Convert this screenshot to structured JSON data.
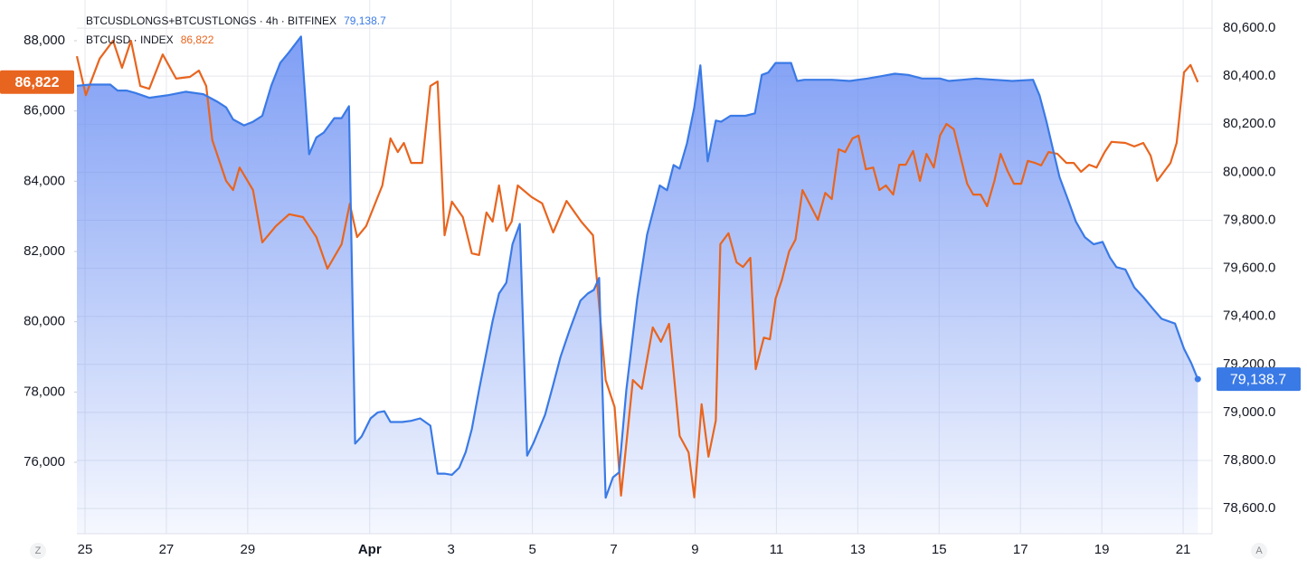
{
  "chart_data": {
    "type": "line",
    "left_button": "Z",
    "right_button": "A",
    "xlim": [
      -0.2,
      27.71
    ],
    "xticks": [
      {
        "value": 0,
        "label": "25"
      },
      {
        "value": 2,
        "label": "27"
      },
      {
        "value": 4,
        "label": "29"
      },
      {
        "value": 7,
        "label": "Apr"
      },
      {
        "value": 9,
        "label": "3"
      },
      {
        "value": 11,
        "label": "5"
      },
      {
        "value": 13,
        "label": "7"
      },
      {
        "value": 15,
        "label": "9"
      },
      {
        "value": 17,
        "label": "11"
      },
      {
        "value": 19,
        "label": "13"
      },
      {
        "value": 21,
        "label": "15"
      },
      {
        "value": 23,
        "label": "17"
      },
      {
        "value": 25,
        "label": "19"
      },
      {
        "value": 27,
        "label": "21"
      }
    ],
    "ylim": [
      73966,
      89159
    ],
    "yticks": [
      {
        "value": 76000,
        "label": "76,000"
      },
      {
        "value": 78000,
        "label": "78,000"
      },
      {
        "value": 80000,
        "label": "80,000"
      },
      {
        "value": 82000,
        "label": "82,000"
      },
      {
        "value": 84000,
        "label": "84,000"
      },
      {
        "value": 86000,
        "label": "86,000"
      },
      {
        "value": 88000,
        "label": "88,000"
      }
    ],
    "y2lim": [
      78495,
      80717
    ],
    "y2ticks": [
      {
        "value": 78600,
        "label": "78,600.0"
      },
      {
        "value": 78800,
        "label": "78,800.0"
      },
      {
        "value": 79000,
        "label": "79,000.0"
      },
      {
        "value": 79200,
        "label": "79,200.0"
      },
      {
        "value": 79400,
        "label": "79,400.0"
      },
      {
        "value": 79600,
        "label": "79,600.0"
      },
      {
        "value": 79800,
        "label": "79,800.0"
      },
      {
        "value": 80000,
        "label": "80,000.0"
      },
      {
        "value": 80200,
        "label": "80,200.0"
      },
      {
        "value": 80400,
        "label": "80,400.0"
      },
      {
        "value": 80600,
        "label": "80,600.0"
      }
    ],
    "grid": true,
    "series": [
      {
        "name": "BTCUSDLONGS+BTCUSTLONGS · 4h · BITFINEX",
        "style": "area",
        "axis": "y2",
        "color": "#3a7ae6",
        "last_value_label": "79,138.7",
        "x": [
          -0.2,
          0.13,
          0.62,
          0.8,
          1.02,
          1.24,
          1.58,
          2.02,
          2.47,
          2.91,
          3.24,
          3.47,
          3.64,
          3.91,
          4.13,
          4.36,
          4.58,
          4.8,
          5.02,
          5.31,
          5.51,
          5.69,
          5.87,
          6.13,
          6.31,
          6.49,
          6.64,
          6.8,
          7.02,
          7.2,
          7.36,
          7.51,
          7.8,
          8.02,
          8.24,
          8.49,
          8.67,
          8.84,
          9.02,
          9.2,
          9.36,
          9.51,
          9.69,
          9.87,
          10.02,
          10.18,
          10.36,
          10.51,
          10.69,
          10.87,
          11.02,
          11.31,
          11.51,
          11.69,
          11.91,
          12.18,
          12.36,
          12.51,
          12.64,
          12.8,
          12.98,
          13.13,
          13.31,
          13.58,
          13.82,
          14.13,
          14.31,
          14.47,
          14.62,
          14.8,
          14.98,
          15.13,
          15.31,
          15.51,
          15.64,
          15.87,
          16.24,
          16.47,
          16.64,
          16.8,
          16.98,
          17.36,
          17.51,
          17.69,
          18.36,
          18.8,
          19.24,
          19.58,
          19.91,
          20.24,
          20.58,
          21.02,
          21.24,
          21.58,
          21.91,
          22.36,
          22.8,
          23.31,
          23.47,
          23.64,
          23.8,
          23.96,
          24.18,
          24.36,
          24.58,
          24.8,
          25.02,
          25.2,
          25.36,
          25.58,
          25.8,
          26.02,
          26.24,
          26.47,
          26.8,
          27.02,
          27.2,
          27.36
        ],
        "values": [
          80360,
          80365,
          80365,
          80340,
          80340,
          80330,
          80310,
          80320,
          80335,
          80325,
          80295,
          80270,
          80220,
          80195,
          80210,
          80235,
          80360,
          80455,
          80500,
          80565,
          80075,
          80145,
          80165,
          80225,
          80225,
          80275,
          78870,
          78900,
          78975,
          79000,
          79005,
          78960,
          78960,
          78965,
          78975,
          78945,
          78745,
          78745,
          78740,
          78770,
          78835,
          78930,
          79095,
          79250,
          79380,
          79495,
          79540,
          79700,
          79785,
          78820,
          78870,
          78990,
          79115,
          79230,
          79340,
          79465,
          79495,
          79510,
          79560,
          78645,
          78730,
          78750,
          79095,
          79475,
          79740,
          79945,
          79925,
          80030,
          80015,
          80120,
          80270,
          80445,
          80045,
          80215,
          80210,
          80235,
          80235,
          80245,
          80405,
          80415,
          80455,
          80455,
          80380,
          80385,
          80385,
          80380,
          80390,
          80400,
          80410,
          80405,
          80390,
          80390,
          80380,
          80385,
          80390,
          80385,
          80380,
          80385,
          80320,
          80210,
          80095,
          79980,
          79880,
          79795,
          79730,
          79700,
          79710,
          79645,
          79605,
          79595,
          79520,
          79480,
          79435,
          79390,
          79370,
          79265,
          79205,
          79138.7
        ]
      },
      {
        "name": "BTCUSD · INDEX",
        "style": "line",
        "axis": "y",
        "color": "#e8651f",
        "last_value_label": "86,822",
        "x": [
          -0.2,
          0.02,
          0.36,
          0.69,
          0.91,
          1.13,
          1.36,
          1.58,
          1.91,
          2.24,
          2.58,
          2.8,
          2.98,
          3.13,
          3.47,
          3.64,
          3.8,
          4.13,
          4.36,
          4.69,
          5.02,
          5.36,
          5.69,
          5.96,
          6.31,
          6.51,
          6.69,
          6.91,
          7.31,
          7.51,
          7.69,
          7.84,
          8.02,
          8.29,
          8.49,
          8.67,
          8.84,
          9.02,
          9.29,
          9.51,
          9.69,
          9.87,
          10.02,
          10.18,
          10.36,
          10.49,
          10.64,
          10.98,
          11.24,
          11.51,
          11.84,
          12.2,
          12.49,
          12.8,
          13.02,
          13.18,
          13.47,
          13.69,
          13.96,
          14.16,
          14.36,
          14.62,
          14.84,
          14.98,
          15.16,
          15.33,
          15.51,
          15.62,
          15.82,
          16.02,
          16.18,
          16.36,
          16.49,
          16.69,
          16.84,
          16.98,
          17.13,
          17.31,
          17.47,
          17.64,
          18.02,
          18.2,
          18.36,
          18.53,
          18.69,
          18.87,
          19.02,
          19.2,
          19.38,
          19.53,
          19.69,
          19.87,
          20.02,
          20.18,
          20.36,
          20.53,
          20.69,
          20.87,
          21.02,
          21.18,
          21.36,
          21.51,
          21.69,
          21.84,
          22.02,
          22.18,
          22.36,
          22.51,
          22.69,
          22.84,
          23.02,
          23.18,
          23.36,
          23.51,
          23.69,
          23.91,
          24.13,
          24.31,
          24.49,
          24.69,
          24.87,
          25.07,
          25.24,
          25.58,
          25.8,
          26.02,
          26.2,
          26.36,
          26.69,
          26.84,
          27.02,
          27.18,
          27.36
        ],
        "values": [
          87560,
          86450,
          87490,
          88000,
          87230,
          88000,
          86710,
          86630,
          87610,
          86920,
          86970,
          87150,
          86710,
          85170,
          84010,
          83750,
          84390,
          83750,
          82260,
          82720,
          83060,
          82980,
          82410,
          81510,
          82210,
          83360,
          82410,
          82720,
          83880,
          85220,
          84830,
          85090,
          84520,
          84520,
          86710,
          86840,
          82460,
          83420,
          82980,
          81950,
          81900,
          83110,
          82850,
          83880,
          82590,
          82850,
          83880,
          83550,
          83370,
          82540,
          83440,
          82850,
          82460,
          78340,
          77570,
          75050,
          78340,
          78090,
          79840,
          79430,
          79940,
          76750,
          76280,
          75000,
          77650,
          76160,
          77190,
          82210,
          82520,
          81690,
          81560,
          81820,
          78650,
          79550,
          79500,
          80660,
          81180,
          82000,
          82340,
          83750,
          82900,
          83670,
          83490,
          84910,
          84830,
          85220,
          85300,
          84340,
          84390,
          83750,
          83880,
          83620,
          84470,
          84470,
          84860,
          84010,
          84780,
          84390,
          85300,
          85630,
          85480,
          84780,
          83930,
          83620,
          83620,
          83290,
          84010,
          84780,
          84270,
          83930,
          83930,
          84580,
          84520,
          84450,
          84830,
          84780,
          84520,
          84520,
          84270,
          84470,
          84390,
          84830,
          85120,
          85090,
          84990,
          85090,
          84730,
          84010,
          84520,
          85090,
          87100,
          87310,
          86822
        ]
      }
    ]
  }
}
